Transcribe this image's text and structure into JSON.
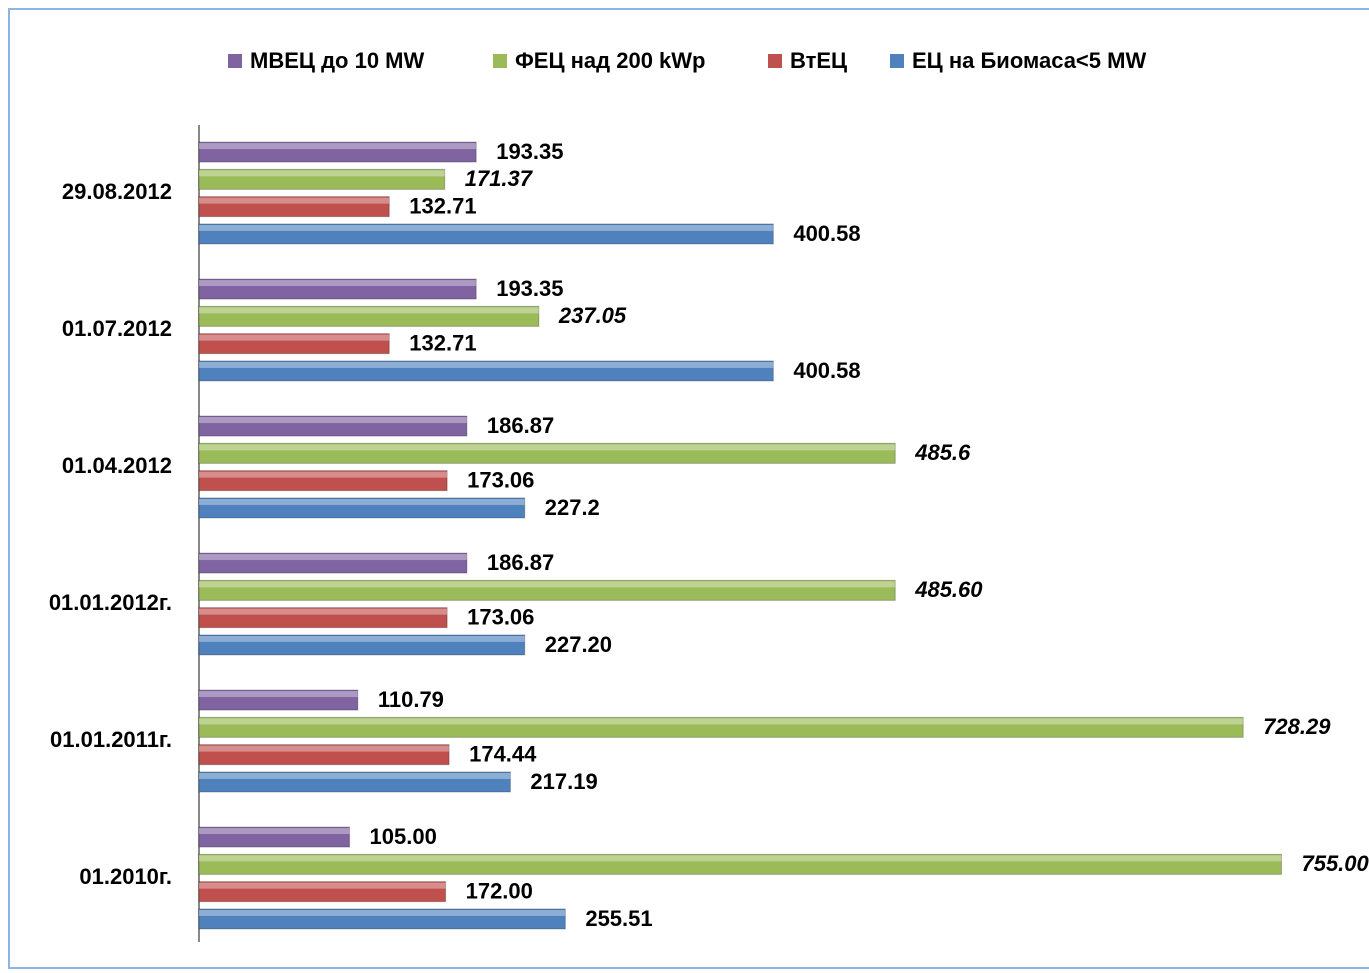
{
  "chart_data": {
    "type": "hbar",
    "categories": [
      "29.08.2012",
      "01.07.2012",
      "01.04.2012",
      "01.01.2012г.",
      "01.01.2011г.",
      "01.2010г."
    ],
    "series": [
      {
        "name": "МВЕЦ до 10 MW",
        "color": "#8064a2",
        "values": [
          193.35,
          193.35,
          186.87,
          186.87,
          110.79,
          105.0
        ],
        "value_labels": [
          "193.35",
          "193.35",
          "186.87",
          "186.87",
          "110.79",
          "105.00"
        ]
      },
      {
        "name": "ФЕЦ над 200 kWp",
        "color": "#9bbb59",
        "italic": true,
        "values": [
          171.37,
          237.05,
          485.6,
          485.6,
          728.29,
          755.0
        ],
        "value_labels": [
          "171.37",
          "237.05",
          "485.6",
          "485.60",
          "728.29",
          "755.00"
        ]
      },
      {
        "name": "ВтЕЦ",
        "color": "#c0504d",
        "values": [
          132.71,
          132.71,
          173.06,
          173.06,
          174.44,
          172.0
        ],
        "value_labels": [
          "132.71",
          "132.71",
          "173.06",
          "173.06",
          "174.44",
          "172.00"
        ]
      },
      {
        "name": "ЕЦ на Биомаса<5 MW",
        "color": "#4f81bd",
        "values": [
          400.58,
          400.58,
          227.2,
          227.2,
          217.19,
          255.51
        ],
        "value_labels": [
          "400.58",
          "400.58",
          "227.2",
          "227.20",
          "217.19",
          "255.51"
        ]
      }
    ],
    "xlim": [
      0,
      800
    ],
    "legend": "top"
  }
}
